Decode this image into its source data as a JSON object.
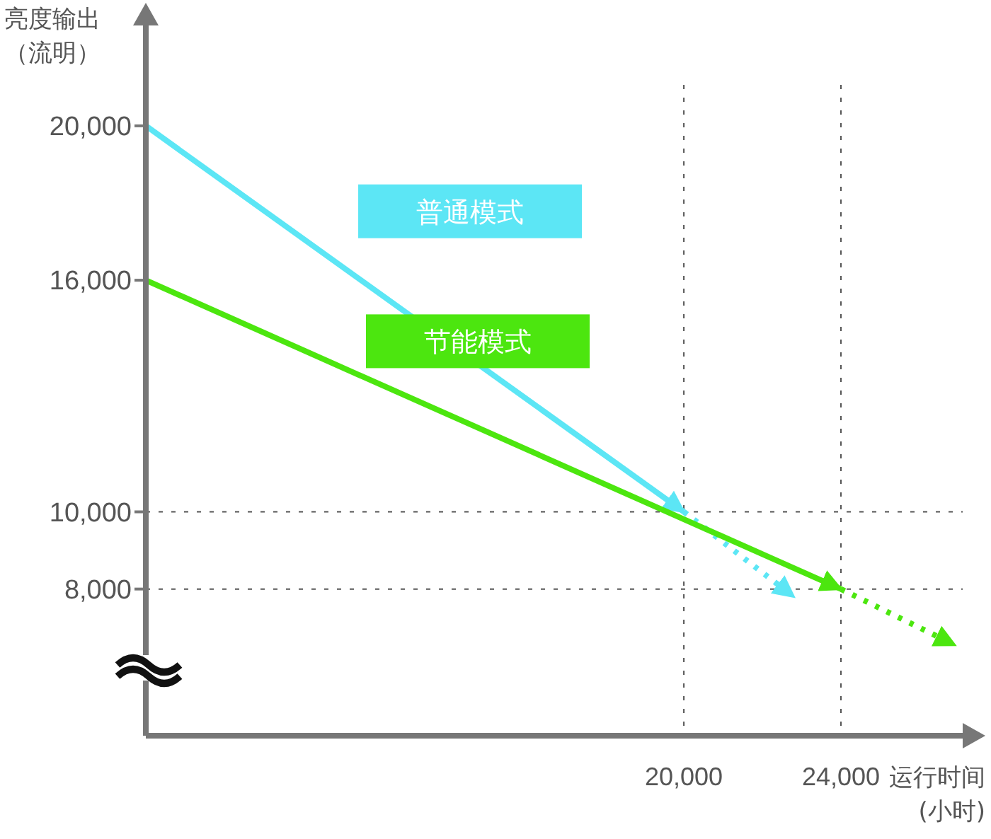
{
  "chart_data": {
    "type": "line",
    "xlabel": "运行时间(小时)",
    "ylabel": "亮度输出（流明）",
    "xlim": [
      6300,
      27100
    ],
    "ylim": [
      4200,
      22600
    ],
    "xticks": [
      {
        "value": 20000,
        "label": "20,000"
      },
      {
        "value": 24000,
        "label": "24,000"
      }
    ],
    "yticks": [
      {
        "value": 8000,
        "label": "8,000"
      },
      {
        "value": 10000,
        "label": "10,000"
      },
      {
        "value": 16000,
        "label": "16,000"
      },
      {
        "value": 20000,
        "label": "20,000"
      }
    ],
    "series": [
      {
        "name": "普通模式",
        "color": "#5ce6f5",
        "x": [
          6300,
          20000
        ],
        "values": [
          20000,
          10000
        ],
        "line_style": "solid"
      },
      {
        "color": "#5ce6f5",
        "x": [
          20000,
          22800
        ],
        "values": [
          10000,
          7800
        ],
        "line_style": "dotted"
      },
      {
        "name": "节能模式",
        "color": "#4ce60f",
        "x": [
          6300,
          24000
        ],
        "values": [
          16000,
          8000
        ],
        "line_style": "solid"
      },
      {
        "color": "#4ce60f",
        "x": [
          24000,
          26900
        ],
        "values": [
          8000,
          6550
        ],
        "line_style": "dotted"
      }
    ],
    "ref_lines": [
      {
        "axis": "x",
        "value": 20000,
        "line_style": "dotted",
        "color": "#555555"
      },
      {
        "axis": "x",
        "value": 24000,
        "line_style": "dotted",
        "color": "#555555"
      },
      {
        "axis": "y",
        "value": 10000,
        "line_style": "dotted",
        "color": "#555555"
      },
      {
        "axis": "y",
        "value": 8000,
        "line_style": "dotted",
        "color": "#555555"
      }
    ],
    "marker": "none",
    "grid": false
  }
}
